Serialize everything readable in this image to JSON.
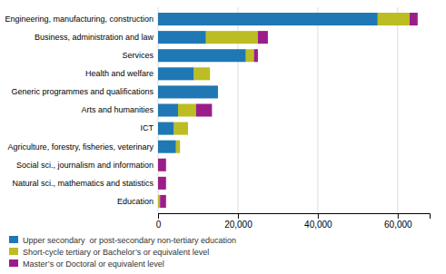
{
  "chart_data": {
    "type": "bar",
    "orientation": "horizontal",
    "stacked": true,
    "categories": [
      "Engineering, manufacturing, construction",
      "Business, administration and law",
      "Services",
      "Health and welfare",
      "Generic programmes and qualifications",
      "Arts and humanities",
      "ICT",
      "Agriculture, forestry, fisheries, veterinary",
      "Social sci., journalism and information",
      "Natural sci., mathematics and statistics",
      "Education"
    ],
    "series": [
      {
        "name": "Upper secondary  or post-secondary non-tertiary education",
        "color": "#1f77b4",
        "values": [
          55000,
          12000,
          22000,
          9000,
          15000,
          5000,
          4000,
          4500,
          0,
          0,
          0
        ]
      },
      {
        "name": "Short-cycle tertiary or Bachelor’s or equivalent level",
        "color": "#bcbd22",
        "values": [
          8000,
          13000,
          2000,
          4000,
          0,
          4500,
          3500,
          1000,
          0,
          0,
          500
        ]
      },
      {
        "name": "Master’s or Doctoral or equivalent level",
        "color": "#9b1d8a",
        "values": [
          2000,
          2500,
          1000,
          0,
          0,
          4000,
          0,
          0,
          2000,
          2000,
          1500
        ]
      }
    ],
    "xlim": [
      0,
      68000
    ],
    "xticks": [
      0,
      {
        "value": 20000,
        "label": "20,000"
      },
      {
        "value": 40000,
        "label": "40,000"
      },
      {
        "value": 60000,
        "label": "60,000"
      }
    ],
    "grid": true,
    "legend": "bottom"
  }
}
